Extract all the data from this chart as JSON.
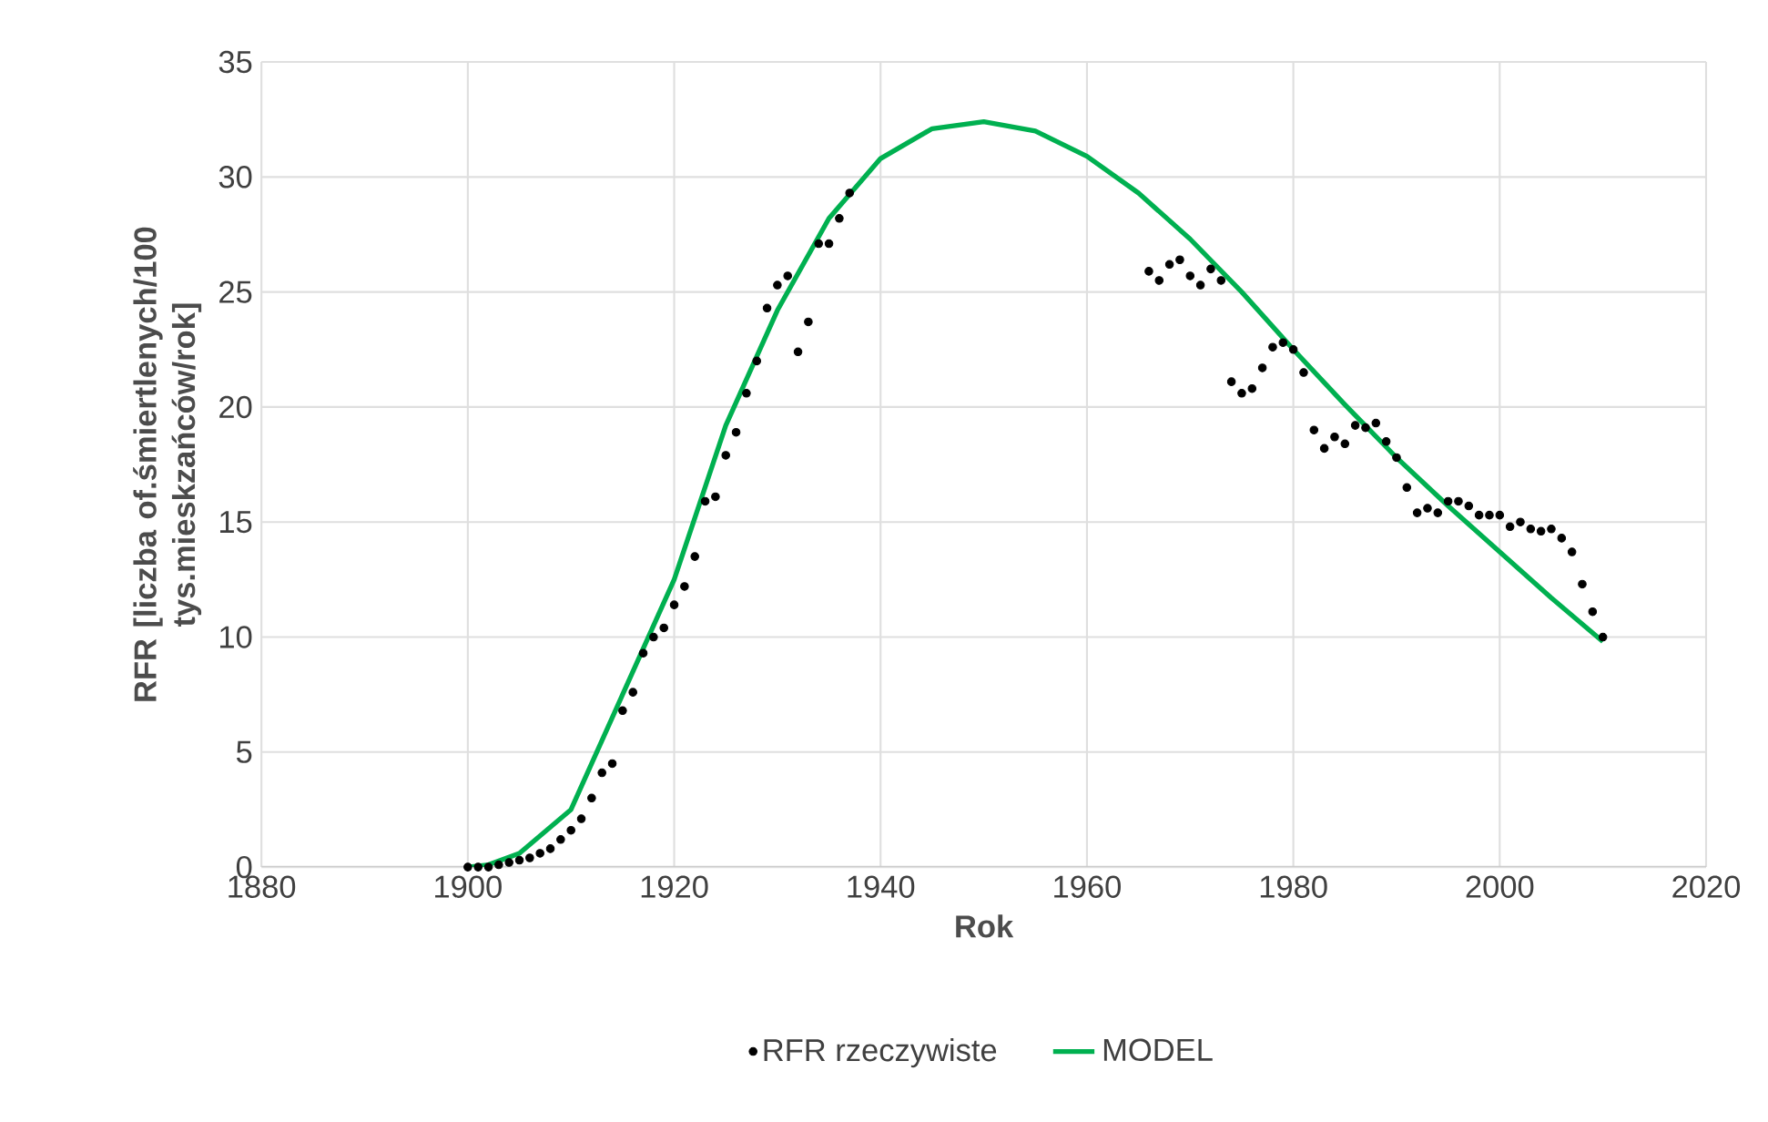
{
  "chart_data": {
    "type": "scatter",
    "xlabel": "Rok",
    "ylabel": "RFR [liczba of.śmiertlenych/100 tys.mieskzańców/rok]",
    "xlim": [
      1880,
      2020
    ],
    "xticks": [
      1880,
      1900,
      1920,
      1940,
      1960,
      1980,
      2000,
      2020
    ],
    "ylim": [
      0,
      35
    ],
    "yticks": [
      0,
      5,
      10,
      15,
      20,
      25,
      30,
      35
    ],
    "grid": true,
    "legend": "bottom",
    "series": [
      {
        "name": "RFR rzeczywiste",
        "marker": "circle",
        "color": "#000000",
        "x": [
          1900,
          1901,
          1902,
          1903,
          1904,
          1905,
          1906,
          1907,
          1908,
          1909,
          1910,
          1911,
          1912,
          1913,
          1914,
          1915,
          1916,
          1917,
          1918,
          1919,
          1920,
          1921,
          1922,
          1923,
          1924,
          1925,
          1926,
          1927,
          1928,
          1929,
          1930,
          1931,
          1932,
          1933,
          1934,
          1935,
          1936,
          1937,
          1966,
          1967,
          1968,
          1969,
          1970,
          1971,
          1972,
          1973,
          1974,
          1975,
          1976,
          1977,
          1978,
          1979,
          1980,
          1981,
          1982,
          1983,
          1984,
          1985,
          1986,
          1987,
          1988,
          1989,
          1990,
          1991,
          1992,
          1993,
          1994,
          1995,
          1996,
          1997,
          1998,
          1999,
          2000,
          2001,
          2002,
          2003,
          2004,
          2005,
          2006,
          2007,
          2008,
          2009,
          2010
        ],
        "values": [
          0,
          0,
          0,
          0.1,
          0.2,
          0.3,
          0.4,
          0.6,
          0.8,
          1.2,
          1.6,
          2.1,
          3.0,
          4.1,
          4.5,
          6.8,
          7.6,
          9.3,
          10.0,
          10.4,
          11.4,
          12.2,
          13.5,
          15.9,
          16.1,
          17.9,
          18.9,
          20.6,
          22.0,
          24.3,
          25.3,
          25.7,
          22.4,
          23.7,
          27.1,
          27.1,
          28.2,
          29.3,
          25.9,
          25.5,
          26.2,
          26.4,
          25.7,
          25.3,
          26.0,
          25.5,
          21.1,
          20.6,
          20.8,
          21.7,
          22.6,
          22.8,
          22.5,
          21.5,
          19.0,
          18.2,
          18.7,
          18.4,
          19.2,
          19.1,
          19.3,
          18.5,
          17.8,
          16.5,
          15.4,
          15.6,
          15.4,
          15.9,
          15.9,
          15.7,
          15.3,
          15.3,
          15.3,
          14.8,
          15.0,
          14.7,
          14.6,
          14.7,
          14.3,
          13.7,
          12.3,
          11.1,
          10.0
        ]
      },
      {
        "name": "MODEL",
        "type": "line",
        "marker": "none",
        "line_style": "solid",
        "color": "#00b050",
        "x": [
          1900,
          1902,
          1905,
          1910,
          1915,
          1920,
          1925,
          1930,
          1935,
          1940,
          1945,
          1950,
          1955,
          1960,
          1965,
          1970,
          1975,
          1980,
          1985,
          1990,
          1995,
          2000,
          2005,
          2010
        ],
        "values": [
          0,
          0.1,
          0.6,
          2.5,
          7.5,
          12.5,
          19.2,
          24.2,
          28.2,
          30.8,
          32.1,
          32.4,
          32.0,
          30.9,
          29.3,
          27.3,
          25.0,
          22.5,
          20.1,
          17.8,
          15.7,
          13.7,
          11.7,
          9.8
        ]
      }
    ]
  }
}
